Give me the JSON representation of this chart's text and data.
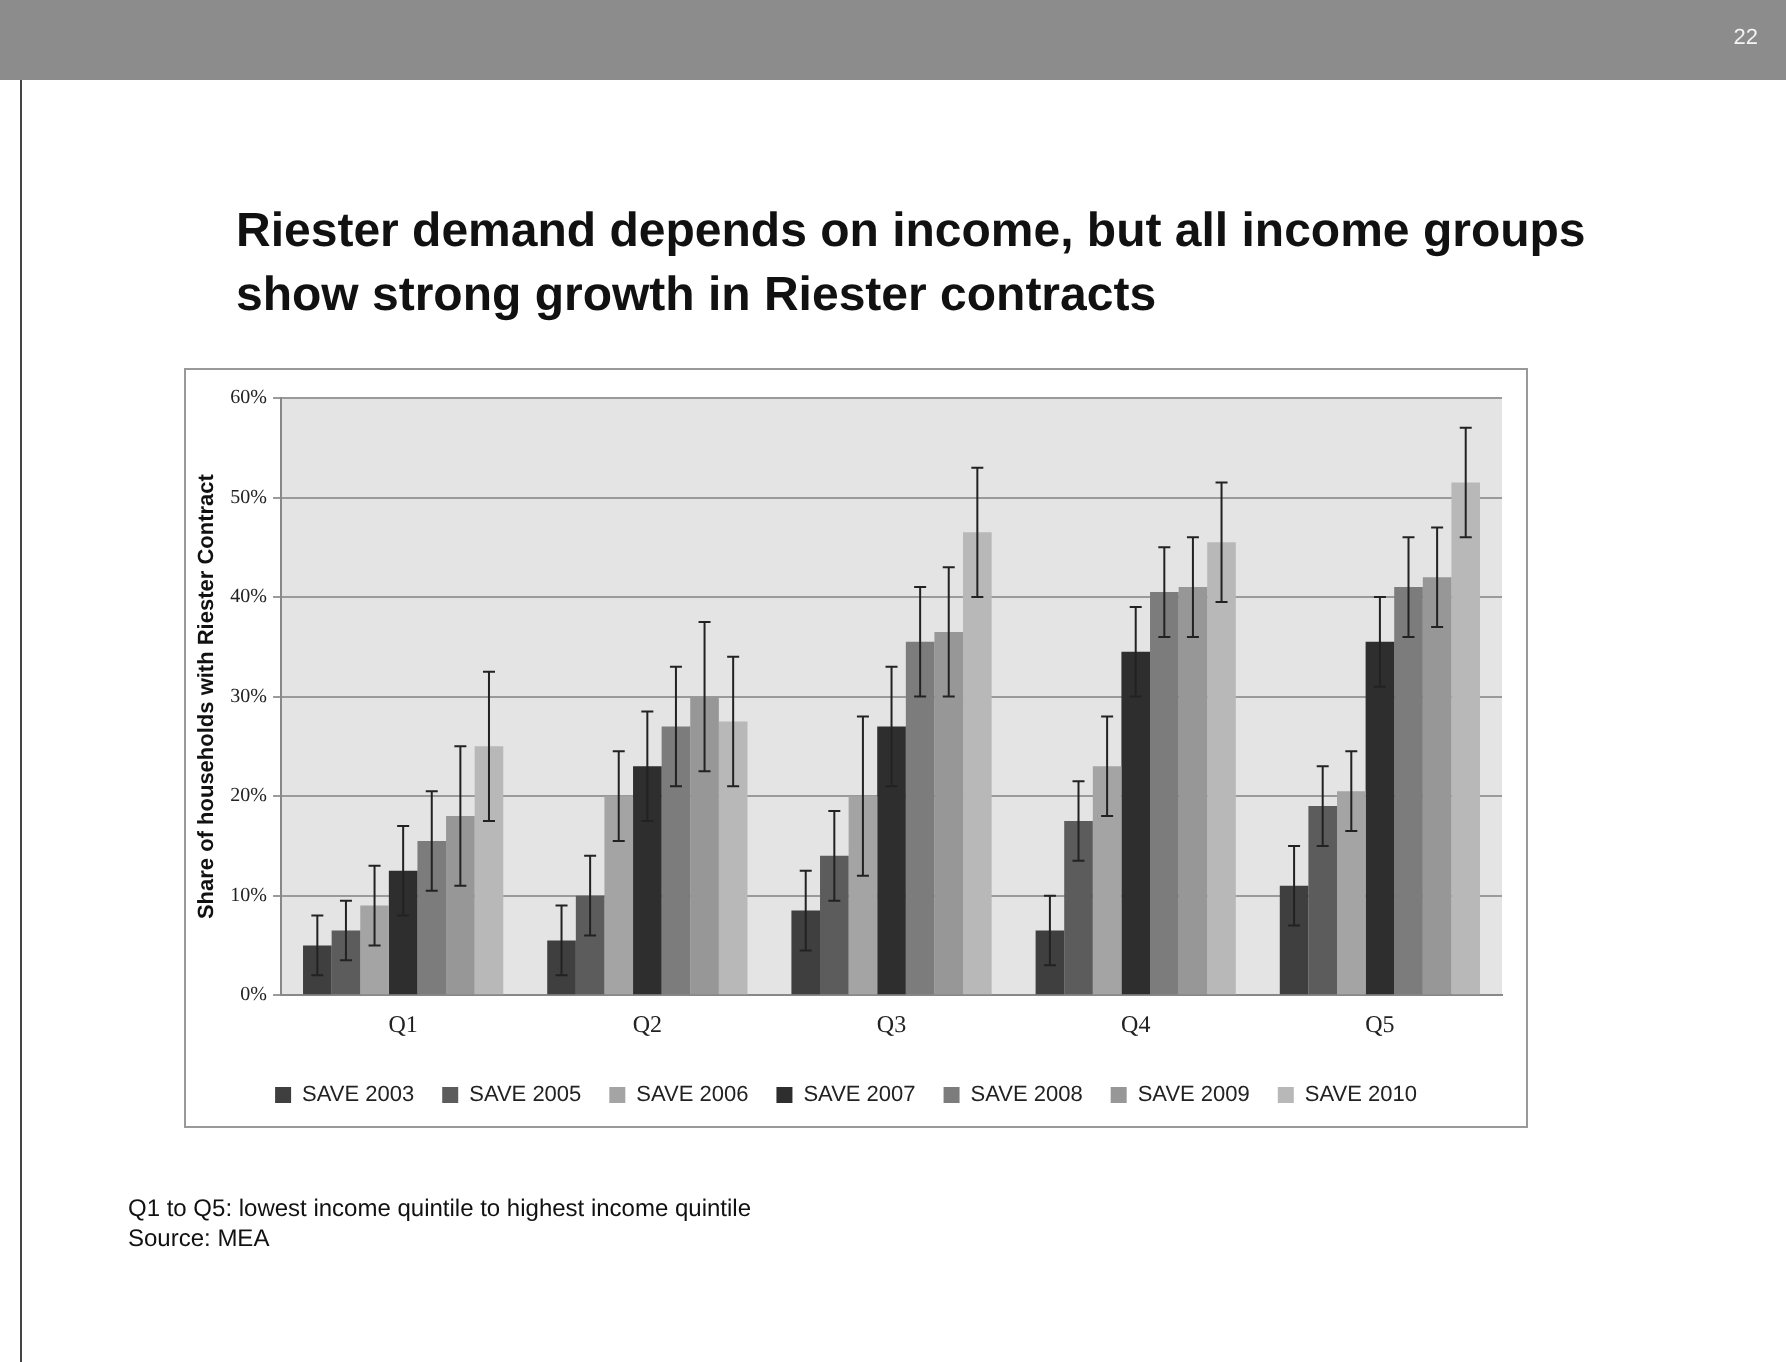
{
  "chart_data": {
    "type": "bar",
    "title": "Riester demand depends on income, but all income groups show strong growth in Riester contracts",
    "ylabel": "Share of households with Riester Contract",
    "categories": [
      "Q1",
      "Q2",
      "Q3",
      "Q4",
      "Q5"
    ],
    "series": [
      {
        "name": "SAVE 2003",
        "color": "#3f3f3f",
        "values": [
          5,
          5.5,
          8.5,
          6.5,
          11
        ],
        "errors": [
          3,
          3.5,
          4,
          3.5,
          4
        ]
      },
      {
        "name": "SAVE 2005",
        "color": "#5c5c5c",
        "values": [
          6.5,
          10,
          14,
          17.5,
          19
        ],
        "errors": [
          3,
          4,
          4.5,
          4,
          4
        ]
      },
      {
        "name": "SAVE 2006",
        "color": "#a4a4a4",
        "values": [
          9,
          20,
          20,
          23,
          20.5
        ],
        "errors": [
          4,
          4.5,
          8,
          5,
          4
        ]
      },
      {
        "name": "SAVE 2007",
        "color": "#2e2e2e",
        "values": [
          12.5,
          23,
          27,
          34.5,
          35.5
        ],
        "errors": [
          4.5,
          5.5,
          6,
          4.5,
          4.5
        ]
      },
      {
        "name": "SAVE 2008",
        "color": "#7c7c7c",
        "values": [
          15.5,
          27,
          35.5,
          40.5,
          41
        ],
        "errors": [
          5,
          6,
          5.5,
          4.5,
          5
        ]
      },
      {
        "name": "SAVE 2009",
        "color": "#979797",
        "values": [
          18,
          30,
          36.5,
          41,
          42
        ],
        "errors": [
          7,
          7.5,
          6.5,
          5,
          5
        ]
      },
      {
        "name": "SAVE 2010",
        "color": "#b8b8b8",
        "values": [
          25,
          27.5,
          46.5,
          45.5,
          51.5
        ],
        "errors": [
          7.5,
          6.5,
          6.5,
          6,
          5.5
        ]
      }
    ],
    "ylim": [
      0,
      60
    ],
    "yticks": [
      {
        "value": 0,
        "label": "0%"
      },
      {
        "value": 10,
        "label": "10%"
      },
      {
        "value": 20,
        "label": "20%"
      },
      {
        "value": 30,
        "label": "30%"
      },
      {
        "value": 40,
        "label": "40%"
      },
      {
        "value": 50,
        "label": "50%"
      },
      {
        "value": 60,
        "label": "60%"
      }
    ],
    "grid": "y",
    "legend": "bottom",
    "annotations": [
      "Q1 to Q5: lowest income quintile to highest income quintile",
      "Source: MEA",
      "22"
    ]
  }
}
